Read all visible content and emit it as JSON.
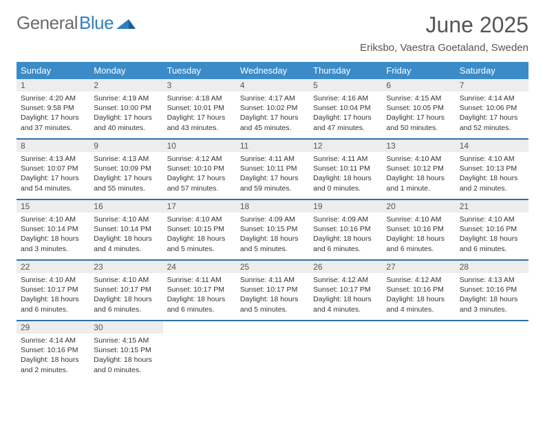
{
  "logo": {
    "part1": "General",
    "part2": "Blue"
  },
  "title": "June 2025",
  "location": "Eriksbo, Vaestra Goetaland, Sweden",
  "colors": {
    "header_bg": "#3b8bc9",
    "week_divider": "#2f6da8",
    "daynum_bg": "#ededed",
    "text": "#333333",
    "title_color": "#555555"
  },
  "days_of_week": [
    "Sunday",
    "Monday",
    "Tuesday",
    "Wednesday",
    "Thursday",
    "Friday",
    "Saturday"
  ],
  "weeks": [
    [
      {
        "n": "1",
        "sr": "Sunrise: 4:20 AM",
        "ss": "Sunset: 9:58 PM",
        "d1": "Daylight: 17 hours",
        "d2": "and 37 minutes."
      },
      {
        "n": "2",
        "sr": "Sunrise: 4:19 AM",
        "ss": "Sunset: 10:00 PM",
        "d1": "Daylight: 17 hours",
        "d2": "and 40 minutes."
      },
      {
        "n": "3",
        "sr": "Sunrise: 4:18 AM",
        "ss": "Sunset: 10:01 PM",
        "d1": "Daylight: 17 hours",
        "d2": "and 43 minutes."
      },
      {
        "n": "4",
        "sr": "Sunrise: 4:17 AM",
        "ss": "Sunset: 10:02 PM",
        "d1": "Daylight: 17 hours",
        "d2": "and 45 minutes."
      },
      {
        "n": "5",
        "sr": "Sunrise: 4:16 AM",
        "ss": "Sunset: 10:04 PM",
        "d1": "Daylight: 17 hours",
        "d2": "and 47 minutes."
      },
      {
        "n": "6",
        "sr": "Sunrise: 4:15 AM",
        "ss": "Sunset: 10:05 PM",
        "d1": "Daylight: 17 hours",
        "d2": "and 50 minutes."
      },
      {
        "n": "7",
        "sr": "Sunrise: 4:14 AM",
        "ss": "Sunset: 10:06 PM",
        "d1": "Daylight: 17 hours",
        "d2": "and 52 minutes."
      }
    ],
    [
      {
        "n": "8",
        "sr": "Sunrise: 4:13 AM",
        "ss": "Sunset: 10:07 PM",
        "d1": "Daylight: 17 hours",
        "d2": "and 54 minutes."
      },
      {
        "n": "9",
        "sr": "Sunrise: 4:13 AM",
        "ss": "Sunset: 10:09 PM",
        "d1": "Daylight: 17 hours",
        "d2": "and 55 minutes."
      },
      {
        "n": "10",
        "sr": "Sunrise: 4:12 AM",
        "ss": "Sunset: 10:10 PM",
        "d1": "Daylight: 17 hours",
        "d2": "and 57 minutes."
      },
      {
        "n": "11",
        "sr": "Sunrise: 4:11 AM",
        "ss": "Sunset: 10:11 PM",
        "d1": "Daylight: 17 hours",
        "d2": "and 59 minutes."
      },
      {
        "n": "12",
        "sr": "Sunrise: 4:11 AM",
        "ss": "Sunset: 10:11 PM",
        "d1": "Daylight: 18 hours",
        "d2": "and 0 minutes."
      },
      {
        "n": "13",
        "sr": "Sunrise: 4:10 AM",
        "ss": "Sunset: 10:12 PM",
        "d1": "Daylight: 18 hours",
        "d2": "and 1 minute."
      },
      {
        "n": "14",
        "sr": "Sunrise: 4:10 AM",
        "ss": "Sunset: 10:13 PM",
        "d1": "Daylight: 18 hours",
        "d2": "and 2 minutes."
      }
    ],
    [
      {
        "n": "15",
        "sr": "Sunrise: 4:10 AM",
        "ss": "Sunset: 10:14 PM",
        "d1": "Daylight: 18 hours",
        "d2": "and 3 minutes."
      },
      {
        "n": "16",
        "sr": "Sunrise: 4:10 AM",
        "ss": "Sunset: 10:14 PM",
        "d1": "Daylight: 18 hours",
        "d2": "and 4 minutes."
      },
      {
        "n": "17",
        "sr": "Sunrise: 4:10 AM",
        "ss": "Sunset: 10:15 PM",
        "d1": "Daylight: 18 hours",
        "d2": "and 5 minutes."
      },
      {
        "n": "18",
        "sr": "Sunrise: 4:09 AM",
        "ss": "Sunset: 10:15 PM",
        "d1": "Daylight: 18 hours",
        "d2": "and 5 minutes."
      },
      {
        "n": "19",
        "sr": "Sunrise: 4:09 AM",
        "ss": "Sunset: 10:16 PM",
        "d1": "Daylight: 18 hours",
        "d2": "and 6 minutes."
      },
      {
        "n": "20",
        "sr": "Sunrise: 4:10 AM",
        "ss": "Sunset: 10:16 PM",
        "d1": "Daylight: 18 hours",
        "d2": "and 6 minutes."
      },
      {
        "n": "21",
        "sr": "Sunrise: 4:10 AM",
        "ss": "Sunset: 10:16 PM",
        "d1": "Daylight: 18 hours",
        "d2": "and 6 minutes."
      }
    ],
    [
      {
        "n": "22",
        "sr": "Sunrise: 4:10 AM",
        "ss": "Sunset: 10:17 PM",
        "d1": "Daylight: 18 hours",
        "d2": "and 6 minutes."
      },
      {
        "n": "23",
        "sr": "Sunrise: 4:10 AM",
        "ss": "Sunset: 10:17 PM",
        "d1": "Daylight: 18 hours",
        "d2": "and 6 minutes."
      },
      {
        "n": "24",
        "sr": "Sunrise: 4:11 AM",
        "ss": "Sunset: 10:17 PM",
        "d1": "Daylight: 18 hours",
        "d2": "and 6 minutes."
      },
      {
        "n": "25",
        "sr": "Sunrise: 4:11 AM",
        "ss": "Sunset: 10:17 PM",
        "d1": "Daylight: 18 hours",
        "d2": "and 5 minutes."
      },
      {
        "n": "26",
        "sr": "Sunrise: 4:12 AM",
        "ss": "Sunset: 10:17 PM",
        "d1": "Daylight: 18 hours",
        "d2": "and 4 minutes."
      },
      {
        "n": "27",
        "sr": "Sunrise: 4:12 AM",
        "ss": "Sunset: 10:16 PM",
        "d1": "Daylight: 18 hours",
        "d2": "and 4 minutes."
      },
      {
        "n": "28",
        "sr": "Sunrise: 4:13 AM",
        "ss": "Sunset: 10:16 PM",
        "d1": "Daylight: 18 hours",
        "d2": "and 3 minutes."
      }
    ],
    [
      {
        "n": "29",
        "sr": "Sunrise: 4:14 AM",
        "ss": "Sunset: 10:16 PM",
        "d1": "Daylight: 18 hours",
        "d2": "and 2 minutes."
      },
      {
        "n": "30",
        "sr": "Sunrise: 4:15 AM",
        "ss": "Sunset: 10:15 PM",
        "d1": "Daylight: 18 hours",
        "d2": "and 0 minutes."
      },
      null,
      null,
      null,
      null,
      null
    ]
  ]
}
